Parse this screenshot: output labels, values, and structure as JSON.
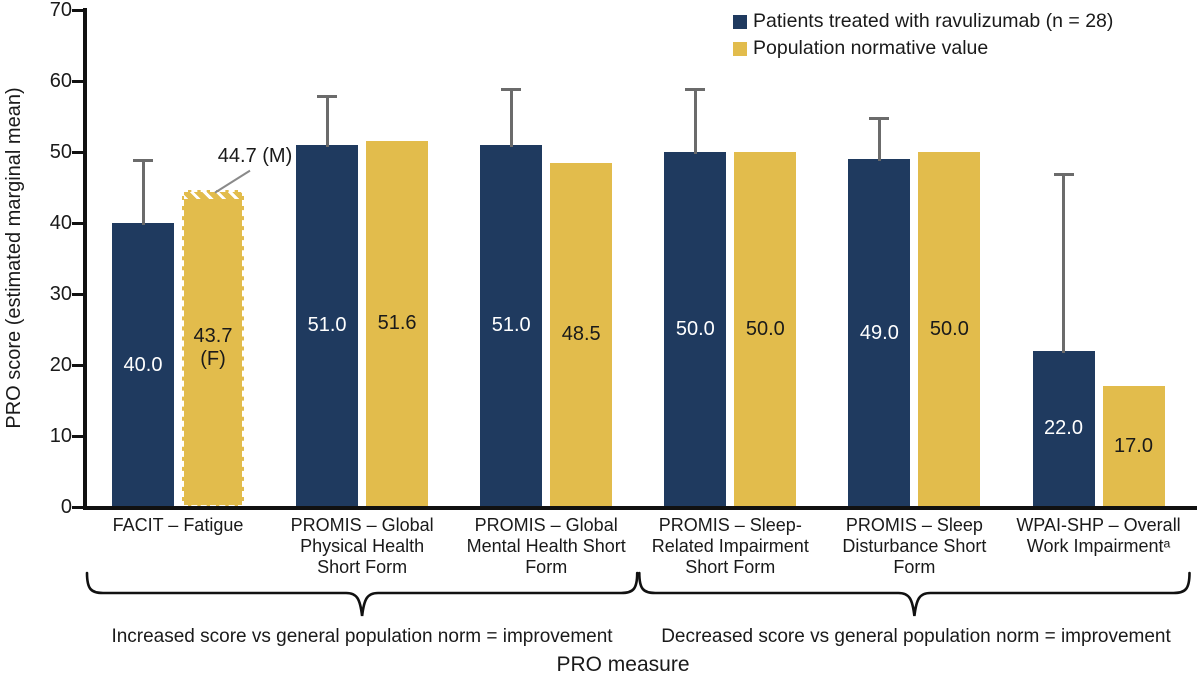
{
  "chart_data": {
    "type": "bar",
    "title": "",
    "ylabel": "PRO score (estimated marginal mean)",
    "xlabel": "PRO measure",
    "ylim": [
      0,
      70
    ],
    "yticks": [
      0,
      10,
      20,
      30,
      40,
      50,
      60,
      70
    ],
    "grid": false,
    "legend_position": "top-right",
    "categories": [
      "FACIT – Fatigue",
      "PROMIS – Global Physical Health Short Form",
      "PROMIS – Global Mental Health Short Form",
      "PROMIS – Sleep-Related Impairment Short Form",
      "PROMIS – Sleep Disturbance Short Form",
      "WPAI-SHP – Overall Work Impairmentᵃ"
    ],
    "category_lines": [
      [
        "FACIT – Fatigue"
      ],
      [
        "PROMIS – Global",
        "Physical Health",
        "Short Form"
      ],
      [
        "PROMIS – Global",
        "Mental Health Short",
        "Form"
      ],
      [
        "PROMIS – Sleep-",
        "Related Impairment",
        "Short Form"
      ],
      [
        "PROMIS – Sleep",
        "Disturbance Short",
        "Form"
      ],
      [
        "WPAI-SHP – Overall",
        "Work Impairmentᵃ"
      ]
    ],
    "series": [
      {
        "name": "Patients treated with ravulizumab (n = 28)",
        "color": "#1f3a5f",
        "label_color": "#ffffff",
        "values": [
          40.0,
          51.0,
          51.0,
          50.0,
          49.0,
          22.0
        ],
        "value_labels": [
          "40.0",
          "51.0",
          "51.0",
          "50.0",
          "49.0",
          "22.0"
        ],
        "error_bar_tops": [
          49,
          58,
          59,
          59,
          55,
          47
        ]
      },
      {
        "name": "Population normative value",
        "color": "#e2bc4c",
        "label_color": "#1a1a1a",
        "values": [
          43.7,
          51.6,
          48.5,
          50.0,
          50.0,
          17.0
        ],
        "value_labels": [
          "43.7\n(F)",
          "51.6",
          "48.5",
          "50.0",
          "50.0",
          "17.0"
        ]
      }
    ],
    "annotation": {
      "text": "44.7 (M)",
      "value": 44.7,
      "category": "FACIT – Fatigue"
    },
    "brackets": [
      {
        "label": "Increased score vs general population norm = improvement",
        "from": 0,
        "to": 2
      },
      {
        "label": "Decreased score vs general population norm = improvement",
        "from": 3,
        "to": 5
      }
    ]
  }
}
